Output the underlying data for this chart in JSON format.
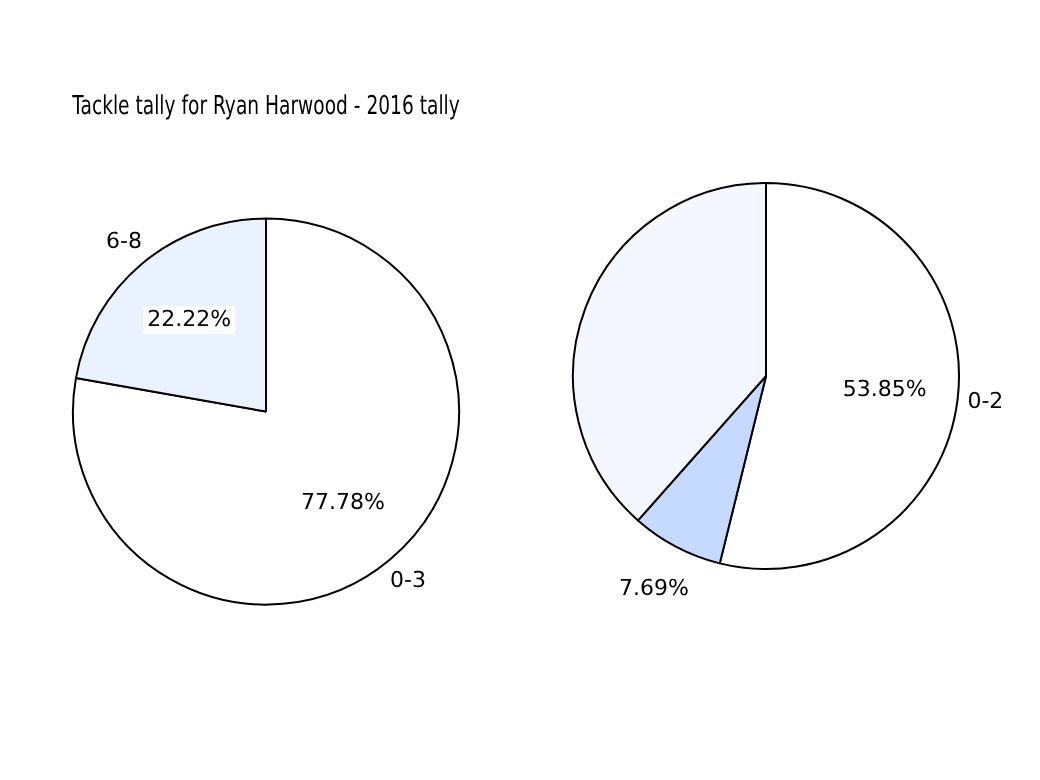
{
  "chart_data": [
    {
      "type": "pie",
      "title": "Tackle tally for Ryan Harwood - 2016 tally",
      "categories": [
        "0-3",
        "6-8"
      ],
      "values": [
        77.78,
        22.22
      ],
      "colors": [
        "#ffffff",
        "#eaf1ff"
      ],
      "value_labels": [
        "77.78%",
        "22.22%"
      ],
      "legend": false
    },
    {
      "type": "pie",
      "categories": [
        "0-2",
        null,
        null
      ],
      "values": [
        53.85,
        7.69,
        38.46
      ],
      "colors": [
        "#ffffff",
        "#c6d9ff",
        "#f4f7ff"
      ],
      "value_labels": [
        "53.85%",
        "7.69%",
        null
      ],
      "legend": false
    }
  ]
}
